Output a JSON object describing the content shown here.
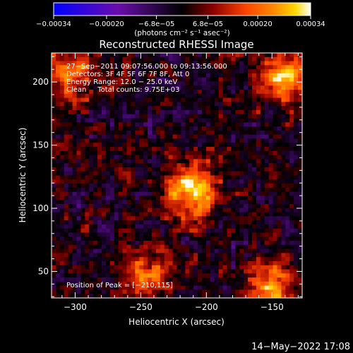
{
  "chart_data": {
    "type": "heatmap",
    "title": "Reconstructed RHESSI Image",
    "xlabel": "Heliocentric X (arcsec)",
    "ylabel": "Heliocentric Y (arcsec)",
    "xlim": [
      -318,
      -127
    ],
    "ylim": [
      29,
      223
    ],
    "x_ticks": [
      -300,
      -250,
      -200,
      -150
    ],
    "x_tick_labels": [
      "−300",
      "−250",
      "−200",
      "−150"
    ],
    "y_ticks": [
      50,
      100,
      150,
      200
    ],
    "y_tick_labels": [
      "50",
      "100",
      "150",
      "200"
    ],
    "colorbar": {
      "range": [
        -0.00034,
        0.00034
      ],
      "ticks": [
        -0.00034,
        -0.0002,
        -6.8e-05,
        6.8e-05,
        0.0002,
        0.00034
      ],
      "tick_labels": [
        "−0.00034",
        "−0.00020",
        "−6.8e−05",
        "6.8e−05",
        "0.00020",
        "0.00034"
      ],
      "units_label": "(photons cm⁻² s⁻¹ asec⁻²)",
      "colors": [
        "#0000ff",
        "#6a0dad",
        "#000000",
        "#8b0000",
        "#ff4500",
        "#ff8c00",
        "#ffd700",
        "#ffffff"
      ]
    },
    "info_lines": [
      "27−Sep−2011 09:07:56.000 to 09:13:56.000",
      "Detectors: 3F 4F 5F 6F 7F 8F, Att 0",
      "Energy Range: 12.0 − 25.0 keV",
      "Clean     Total counts: 9.75E+03"
    ],
    "peak_label": "Position of Peak = [−210,115]",
    "peak": [
      -210,
      115
    ],
    "sources": [
      {
        "x": -210,
        "y": 115,
        "intensity": 0.00034
      },
      {
        "x": -140,
        "y": 203,
        "intensity": 0.0003
      },
      {
        "x": -150,
        "y": 38,
        "intensity": 0.00024
      },
      {
        "x": -300,
        "y": 205,
        "intensity": 0.0002
      },
      {
        "x": -245,
        "y": 48,
        "intensity": 0.0002
      }
    ],
    "grid": false,
    "legend": "none"
  },
  "footer_date": "14−May−2022 17:08"
}
